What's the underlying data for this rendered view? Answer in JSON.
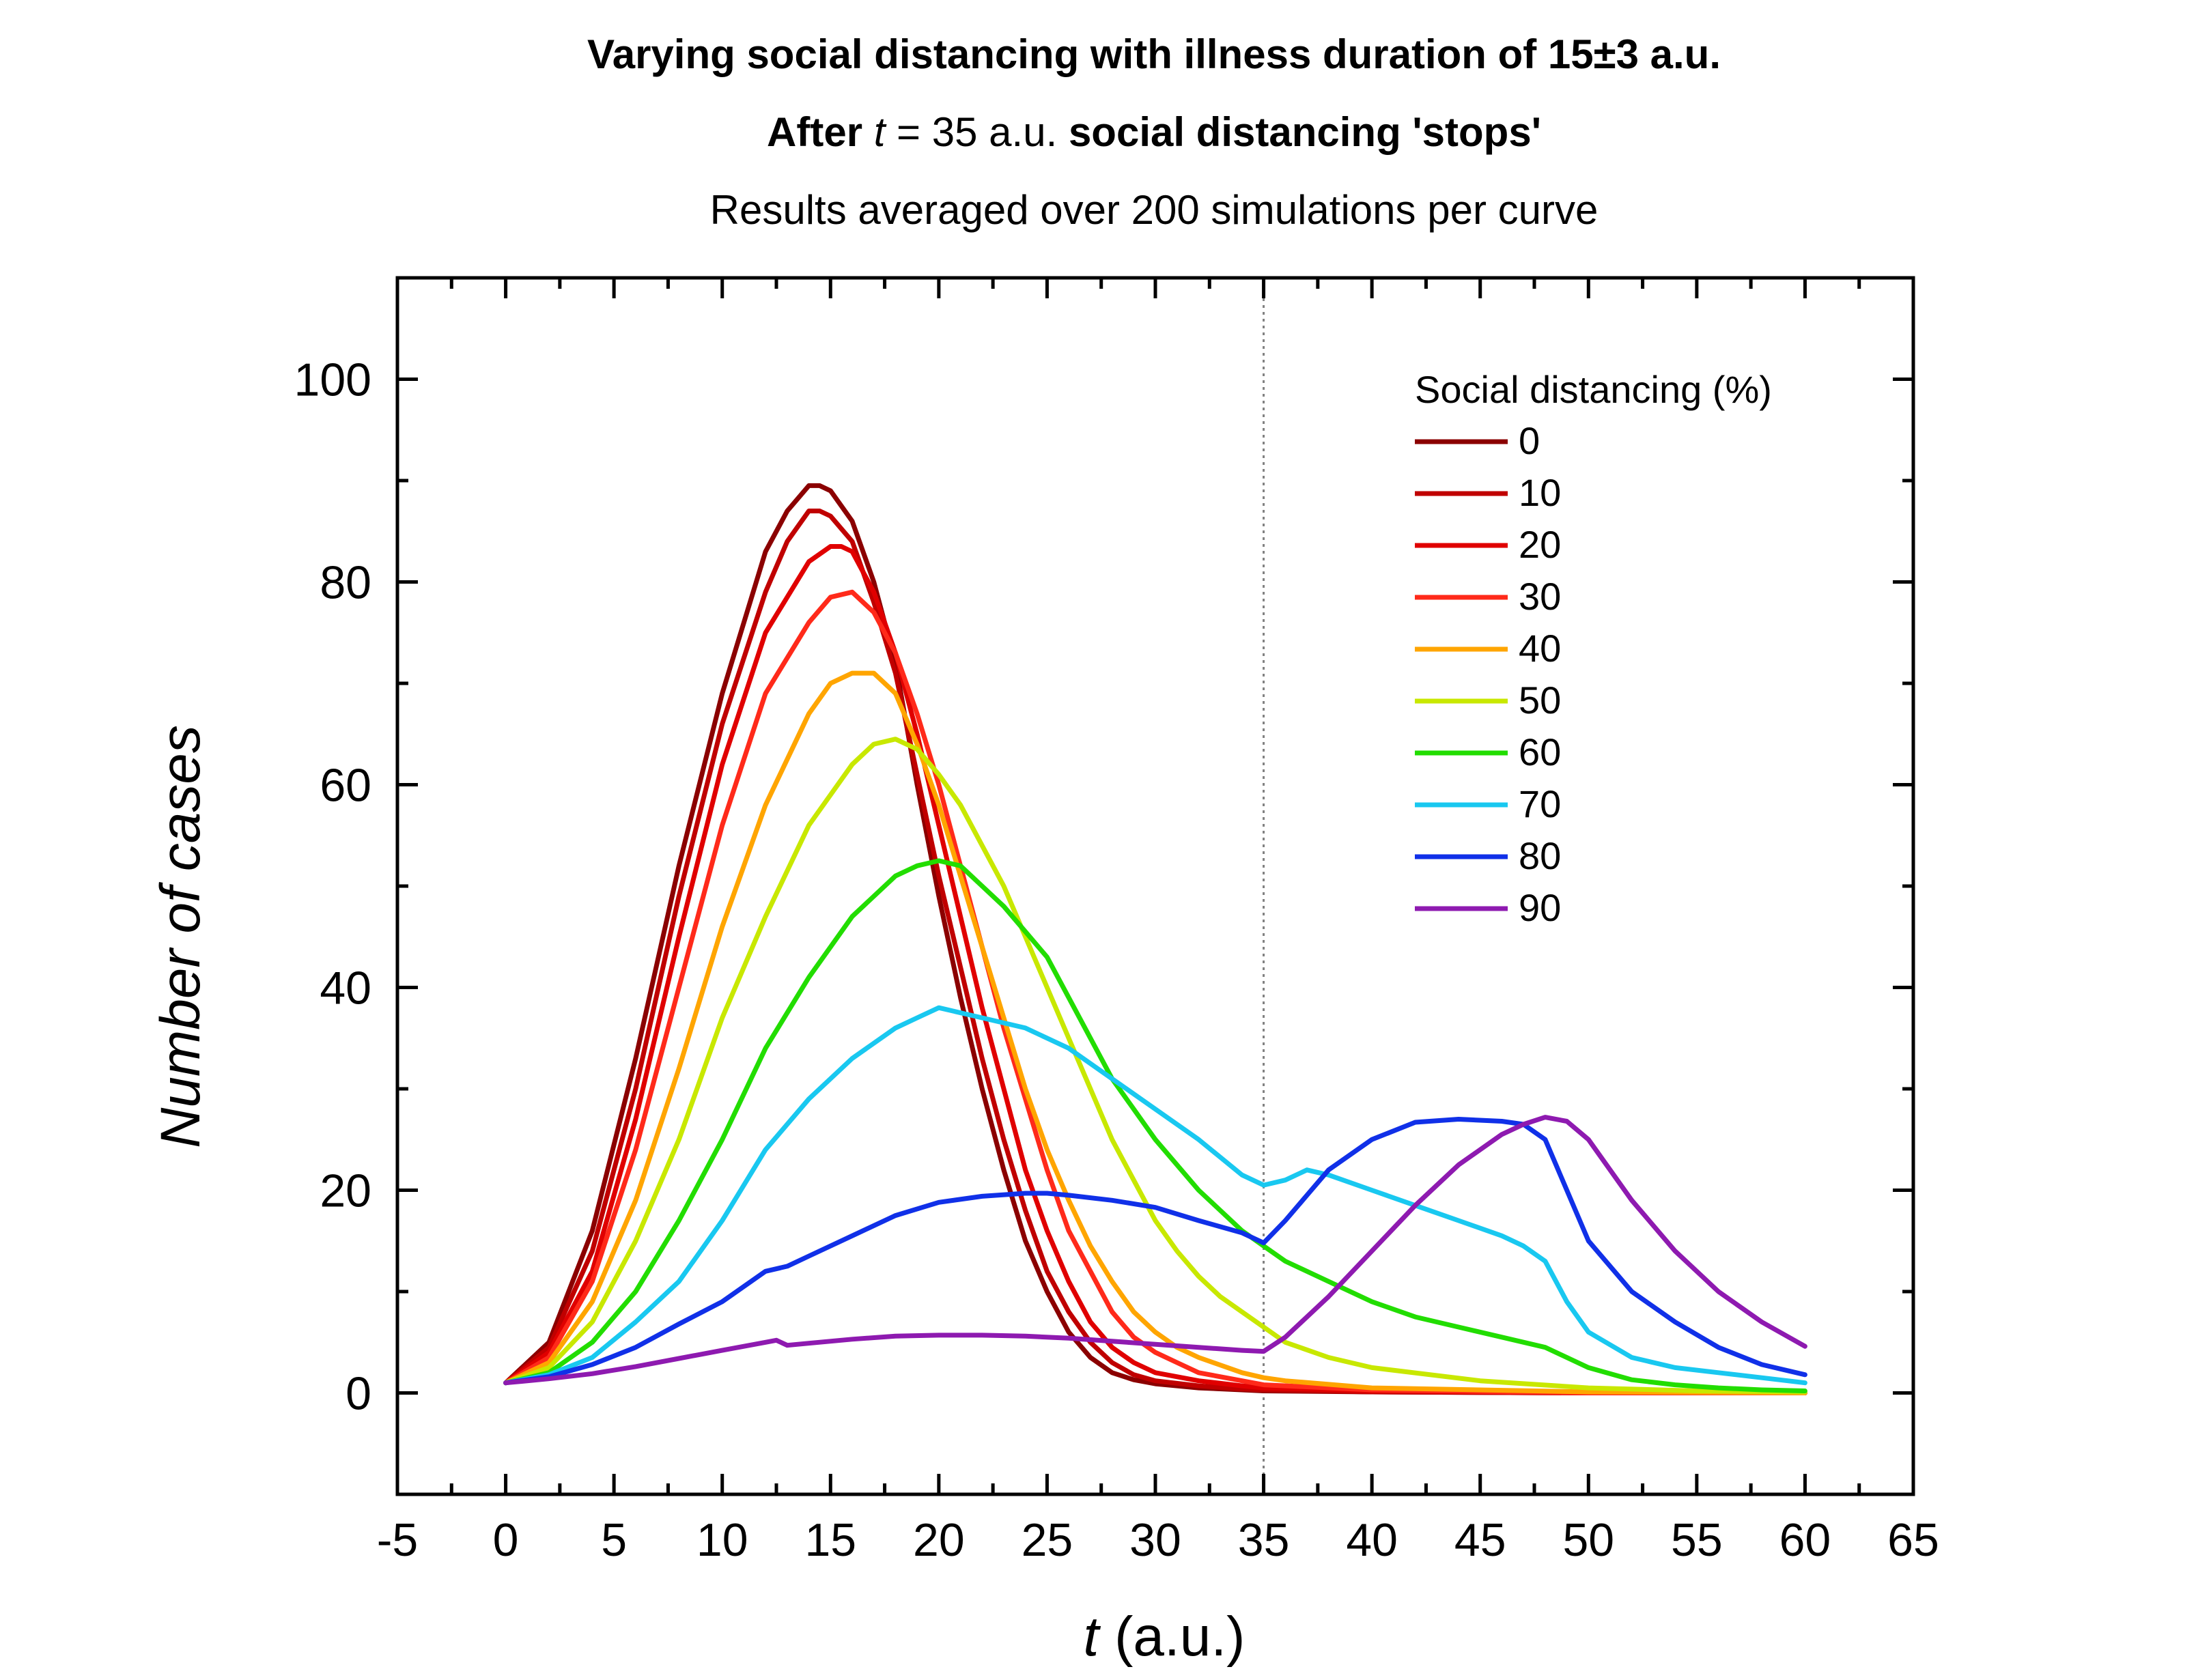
{
  "chart_data": {
    "type": "line",
    "title": "Varying social distancing with illness duration of 15±3 a.u.",
    "subtitle_parts": [
      {
        "text": "After ",
        "bold": true,
        "italic": false
      },
      {
        "text": "t",
        "bold": false,
        "italic": true
      },
      {
        "text": " = 35 a.u. ",
        "bold": false,
        "italic": false
      },
      {
        "text": "social distancing 'stops'",
        "bold": true,
        "italic": false
      }
    ],
    "subtitle2": "Results averaged over 200 simulations per curve",
    "xlabel_var": "t",
    "xlabel_unit": " (a.u.)",
    "ylabel": "Number of cases",
    "xlim": [
      -5,
      65
    ],
    "ylim": [
      -10,
      110
    ],
    "xticks": [
      -5,
      0,
      5,
      10,
      15,
      20,
      25,
      30,
      35,
      40,
      45,
      50,
      55,
      60,
      65
    ],
    "xtick_labels": [
      "-5",
      "0",
      "5",
      "10",
      "15",
      "20",
      "25",
      "30",
      "35",
      "40",
      "45",
      "50",
      "55",
      "60",
      "65"
    ],
    "yticks": [
      0,
      20,
      40,
      60,
      80,
      100
    ],
    "ytick_labels": [
      "0",
      "20",
      "40",
      "60",
      "80",
      "100"
    ],
    "vline_x": 35,
    "legend_title": "Social distancing (%)",
    "legend_position": "top-right",
    "series": [
      {
        "name": "0",
        "color": "#8B0000",
        "x": [
          0,
          2,
          4,
          6,
          8,
          10,
          12,
          13,
          14,
          14.5,
          15,
          16,
          17,
          18,
          19,
          20,
          21,
          22,
          23,
          24,
          25,
          26,
          27,
          28,
          29,
          30,
          32,
          34,
          35,
          40,
          50,
          60
        ],
        "y": [
          1,
          5,
          16,
          33,
          52,
          69,
          83,
          87,
          89.5,
          89.5,
          89,
          86,
          80,
          72,
          60,
          49,
          39,
          30,
          22,
          15,
          10,
          6,
          3.5,
          2,
          1.3,
          0.9,
          0.5,
          0.3,
          0.2,
          0.1,
          0,
          0
        ]
      },
      {
        "name": "10",
        "color": "#C00000",
        "x": [
          0,
          2,
          4,
          6,
          8,
          10,
          12,
          13,
          14,
          14.5,
          15,
          16,
          17,
          18,
          19,
          20,
          21,
          22,
          23,
          24,
          25,
          26,
          27,
          28,
          29,
          30,
          32,
          34,
          35,
          40,
          50,
          60
        ],
        "y": [
          1,
          4.5,
          14,
          30,
          49,
          66,
          79,
          84,
          87,
          87,
          86.5,
          84,
          78,
          71,
          61,
          51,
          42,
          33,
          25,
          18,
          12,
          8,
          5,
          3,
          1.8,
          1.2,
          0.7,
          0.4,
          0.3,
          0.1,
          0,
          0
        ]
      },
      {
        "name": "20",
        "color": "#E00000",
        "x": [
          0,
          2,
          4,
          6,
          8,
          10,
          12,
          14,
          15,
          15.5,
          16,
          17,
          18,
          19,
          20,
          21,
          22,
          23,
          24,
          25,
          26,
          27,
          28,
          29,
          30,
          32,
          34,
          35,
          40,
          50,
          60
        ],
        "y": [
          1,
          4,
          12,
          27,
          45,
          62,
          75,
          82,
          83.5,
          83.5,
          83,
          79,
          73,
          65,
          56,
          47,
          38,
          30,
          22,
          16,
          11,
          7,
          4.5,
          3,
          2,
          1.2,
          0.7,
          0.5,
          0.2,
          0,
          0
        ]
      },
      {
        "name": "30",
        "color": "#FF2A1A",
        "x": [
          0,
          2,
          4,
          6,
          8,
          10,
          12,
          14,
          15,
          16,
          17,
          18,
          19,
          20,
          21,
          22,
          23,
          24,
          25,
          26,
          27,
          28,
          29,
          30,
          31,
          32,
          34,
          35,
          40,
          50,
          60
        ],
        "y": [
          1,
          3.5,
          11,
          24,
          40,
          56,
          69,
          76,
          78.5,
          79,
          77,
          73,
          67,
          60,
          52,
          44,
          36,
          29,
          22,
          16,
          12,
          8,
          5.5,
          4,
          3,
          2,
          1.2,
          0.8,
          0.3,
          0,
          0
        ]
      },
      {
        "name": "40",
        "color": "#FFA500",
        "x": [
          0,
          2,
          4,
          6,
          8,
          10,
          12,
          14,
          15,
          16,
          17,
          18,
          19,
          20,
          21,
          22,
          23,
          24,
          25,
          26,
          27,
          28,
          29,
          30,
          31,
          32,
          34,
          35,
          36,
          40,
          50,
          60
        ],
        "y": [
          1,
          3,
          9,
          19,
          32,
          46,
          58,
          67,
          70,
          71,
          71,
          69,
          64,
          58,
          51,
          44,
          37,
          30,
          24,
          19,
          14.5,
          11,
          8,
          6,
          4.5,
          3.5,
          2,
          1.5,
          1.2,
          0.5,
          0.1,
          0
        ]
      },
      {
        "name": "50",
        "color": "#C8E800",
        "x": [
          0,
          2,
          4,
          6,
          8,
          10,
          12,
          14,
          16,
          17,
          18,
          19,
          20,
          21,
          22,
          23,
          24,
          25,
          26,
          27,
          28,
          29,
          30,
          31,
          32,
          33,
          34,
          35,
          36,
          38,
          40,
          45,
          50,
          55,
          60
        ],
        "y": [
          1,
          2.5,
          7,
          15,
          25,
          37,
          47,
          56,
          62,
          64,
          64.5,
          63.5,
          61,
          58,
          54,
          50,
          45,
          40,
          35,
          30,
          25,
          21,
          17,
          14,
          11.5,
          9.5,
          8,
          6.5,
          5,
          3.5,
          2.5,
          1.2,
          0.5,
          0.2,
          0.1
        ]
      },
      {
        "name": "60",
        "color": "#22DD00",
        "x": [
          0,
          2,
          4,
          6,
          8,
          10,
          12,
          14,
          16,
          18,
          19,
          20,
          21,
          22,
          23,
          24,
          25,
          26,
          27,
          28,
          29,
          30,
          32,
          34,
          35,
          36,
          38,
          40,
          42,
          44,
          46,
          48,
          50,
          52,
          54,
          56,
          58,
          60
        ],
        "y": [
          1,
          2,
          5,
          10,
          17,
          25,
          34,
          41,
          47,
          51,
          52,
          52.5,
          52,
          50,
          48,
          45.5,
          43,
          39,
          35,
          31,
          28,
          25,
          20,
          16,
          14.5,
          13,
          11,
          9,
          7.5,
          6.5,
          5.5,
          4.5,
          2.5,
          1.3,
          0.8,
          0.5,
          0.3,
          0.2
        ]
      },
      {
        "name": "70",
        "color": "#19C8F0",
        "x": [
          0,
          2,
          4,
          6,
          8,
          10,
          12,
          14,
          16,
          18,
          19,
          20,
          21,
          22,
          24,
          26,
          28,
          30,
          32,
          34,
          35,
          36,
          37,
          38,
          40,
          42,
          44,
          46,
          47,
          48,
          49,
          50,
          52,
          54,
          56,
          58,
          60
        ],
        "y": [
          1,
          1.8,
          3.5,
          7,
          11,
          17,
          24,
          29,
          33,
          36,
          37,
          38,
          37.5,
          37,
          36,
          34,
          31,
          28,
          25,
          21.5,
          20.5,
          21,
          22,
          21.5,
          20,
          18.5,
          17,
          15.5,
          14.5,
          13,
          9,
          6,
          3.5,
          2.5,
          2,
          1.5,
          1
        ]
      },
      {
        "name": "80",
        "color": "#1030E8",
        "x": [
          0,
          2,
          4,
          6,
          8,
          10,
          12,
          13,
          14,
          16,
          18,
          20,
          22,
          24,
          25,
          26,
          28,
          30,
          32,
          34,
          35,
          36,
          37,
          38,
          40,
          42,
          44,
          46,
          47,
          48,
          49,
          50,
          52,
          54,
          56,
          58,
          60
        ],
        "y": [
          1,
          1.6,
          2.8,
          4.5,
          6.8,
          9,
          12,
          12.5,
          13.5,
          15.5,
          17.5,
          18.8,
          19.4,
          19.7,
          19.7,
          19.5,
          19,
          18.3,
          17,
          15.8,
          14.8,
          17,
          19.5,
          22,
          25,
          26.7,
          27,
          26.8,
          26.5,
          25,
          20,
          15,
          10,
          7,
          4.5,
          2.8,
          1.8
        ]
      },
      {
        "name": "90",
        "color": "#8E1AB0",
        "x": [
          0,
          2,
          4,
          6,
          8,
          10,
          12,
          12.5,
          13,
          14,
          16,
          18,
          20,
          22,
          24,
          26,
          28,
          30,
          32,
          34,
          35,
          36,
          38,
          40,
          42,
          44,
          46,
          47,
          48,
          49,
          50,
          52,
          54,
          56,
          58,
          60
        ],
        "y": [
          1,
          1.4,
          1.9,
          2.6,
          3.4,
          4.2,
          5,
          5.2,
          4.7,
          4.9,
          5.3,
          5.6,
          5.7,
          5.7,
          5.6,
          5.4,
          5.1,
          4.8,
          4.5,
          4.2,
          4.1,
          5.5,
          9.5,
          14,
          18.5,
          22.5,
          25.5,
          26.5,
          27.2,
          26.8,
          25,
          19,
          14,
          10,
          7,
          4.6
        ]
      }
    ]
  }
}
